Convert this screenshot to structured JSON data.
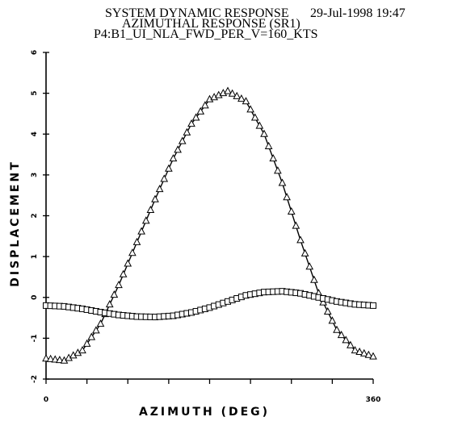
{
  "header": {
    "line1": "SYSTEM DYNAMIC RESPONSE",
    "date": "29-Jul-1998 19:47",
    "line2": "AZIMUTHAL RESPONSE (SR1)",
    "line3": "P4:B1_UI_NLA_FWD_PER_V=160_KTS"
  },
  "chart_data": {
    "type": "line",
    "title": "SYSTEM DYNAMIC RESPONSE",
    "xlabel": "AZIMUTH (DEG)",
    "ylabel": "DISPLACEMENT",
    "xlim": [
      0,
      360
    ],
    "ylim": [
      -2,
      6
    ],
    "x_tick_labels": [
      "0",
      "360"
    ],
    "y_tick_labels": [
      "-2",
      "-1",
      "0",
      "1",
      "2",
      "3",
      "4",
      "5",
      "6"
    ],
    "y_ticks": [
      -2,
      -1,
      0,
      1,
      2,
      3,
      4,
      5,
      6
    ],
    "x_minor_ticks": [
      0,
      45,
      90,
      135,
      180,
      225,
      270,
      315,
      360
    ],
    "grid": false,
    "series": [
      {
        "marker": "triangle",
        "color": "#000000",
        "x": [
          0,
          20,
          40,
          60,
          80,
          100,
          120,
          140,
          160,
          180,
          200,
          220,
          240,
          260,
          280,
          300,
          320,
          340,
          360
        ],
        "y": [
          -1.5,
          -1.55,
          -1.3,
          -0.65,
          0.3,
          1.35,
          2.4,
          3.4,
          4.25,
          4.85,
          5.05,
          4.8,
          4.0,
          2.8,
          1.4,
          0.1,
          -0.8,
          -1.3,
          -1.45
        ]
      },
      {
        "marker": "square",
        "color": "#000000",
        "x": [
          0,
          20,
          40,
          60,
          80,
          100,
          120,
          140,
          160,
          180,
          200,
          220,
          240,
          260,
          280,
          300,
          320,
          340,
          360
        ],
        "y": [
          -0.2,
          -0.22,
          -0.28,
          -0.36,
          -0.43,
          -0.47,
          -0.48,
          -0.45,
          -0.37,
          -0.25,
          -0.1,
          0.05,
          0.13,
          0.15,
          0.1,
          0.0,
          -0.1,
          -0.17,
          -0.2
        ]
      }
    ]
  }
}
